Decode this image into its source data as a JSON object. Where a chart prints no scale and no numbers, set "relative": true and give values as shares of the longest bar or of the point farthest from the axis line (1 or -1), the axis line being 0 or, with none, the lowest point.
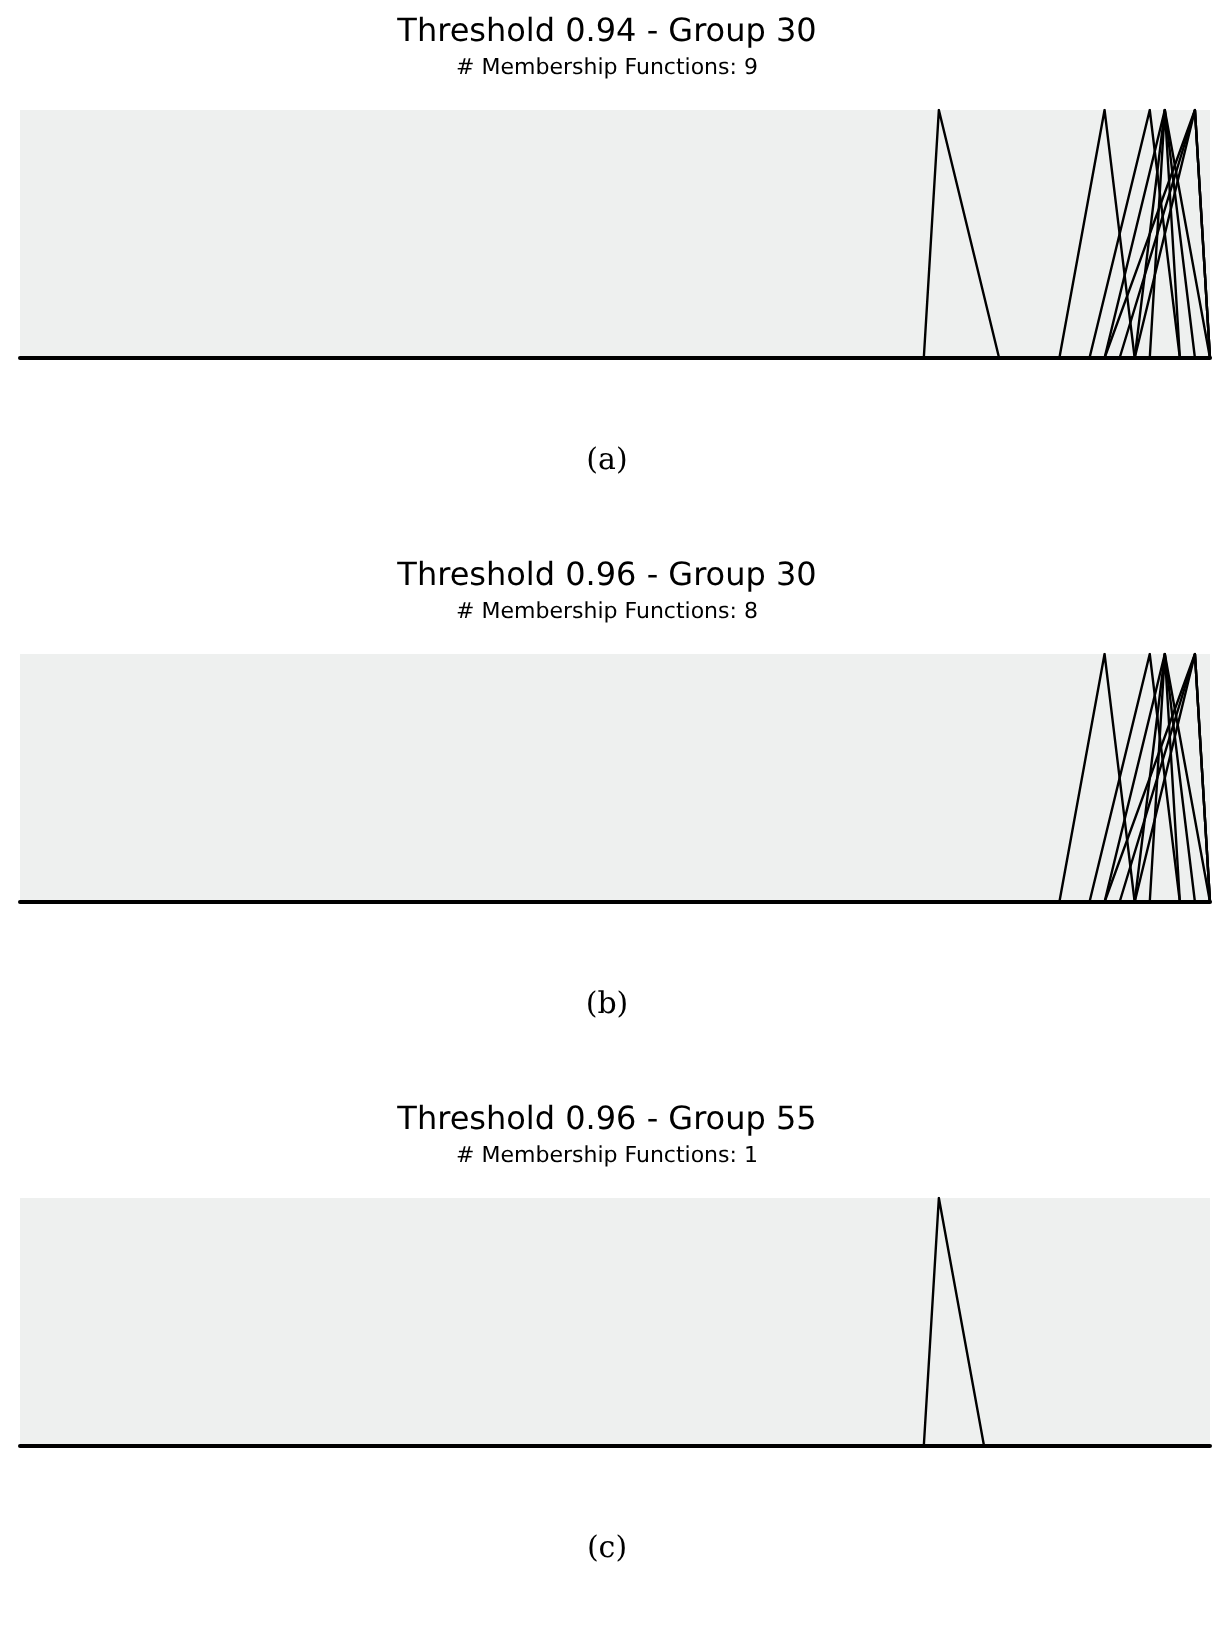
{
  "chart_data": [
    {
      "type": "line",
      "title": "Threshold 0.94 - Group 30",
      "subtitle": "# Membership Functions: 9",
      "annotations": [
        "(a)"
      ],
      "relative": true,
      "tick_labels": false,
      "grid": false,
      "line_style": "solid",
      "categories": [
        null,
        null,
        null,
        null,
        null,
        null,
        null,
        null,
        null,
        null,
        null,
        null,
        null,
        null,
        null,
        null,
        null,
        null,
        null,
        null,
        null,
        null,
        null,
        null,
        null,
        null,
        null,
        null,
        null,
        null,
        null,
        null,
        null,
        null,
        null,
        null,
        null,
        null,
        null,
        null,
        null,
        null,
        null,
        null,
        null,
        null,
        null,
        null,
        null,
        null,
        null,
        null,
        null,
        null,
        null,
        null,
        null,
        null,
        null,
        null,
        null,
        null,
        null,
        null,
        null,
        null,
        null,
        null,
        null,
        null,
        null,
        null,
        null,
        null,
        null,
        null,
        null,
        null,
        null,
        null
      ],
      "series": [
        {
          "color": "#000000",
          "values": [
            null,
            null,
            null,
            null,
            null,
            null,
            null,
            null,
            null,
            null,
            null,
            null,
            null,
            null,
            null,
            null,
            null,
            null,
            null,
            null,
            null,
            null,
            null,
            null,
            null,
            null,
            null,
            null,
            null,
            null,
            null,
            null,
            null,
            null,
            null,
            null,
            null,
            null,
            null,
            null,
            null,
            null,
            null,
            null,
            null,
            null,
            null,
            null,
            null,
            null,
            null,
            null,
            null,
            null,
            null,
            null,
            null,
            null,
            null,
            null,
            0,
            1,
            null,
            null,
            null,
            0,
            null,
            null,
            null,
            null,
            null,
            null,
            null,
            null,
            null,
            null,
            null,
            null,
            null,
            null
          ]
        },
        {
          "color": "#000000",
          "values": [
            null,
            null,
            null,
            null,
            null,
            null,
            null,
            null,
            null,
            null,
            null,
            null,
            null,
            null,
            null,
            null,
            null,
            null,
            null,
            null,
            null,
            null,
            null,
            null,
            null,
            null,
            null,
            null,
            null,
            null,
            null,
            null,
            null,
            null,
            null,
            null,
            null,
            null,
            null,
            null,
            null,
            null,
            null,
            null,
            null,
            null,
            null,
            null,
            null,
            null,
            null,
            null,
            null,
            null,
            null,
            null,
            null,
            null,
            null,
            null,
            null,
            null,
            null,
            null,
            null,
            null,
            null,
            null,
            null,
            0,
            null,
            null,
            1,
            null,
            0,
            null,
            null,
            null,
            null,
            null
          ]
        },
        {
          "color": "#000000",
          "values": [
            null,
            null,
            null,
            null,
            null,
            null,
            null,
            null,
            null,
            null,
            null,
            null,
            null,
            null,
            null,
            null,
            null,
            null,
            null,
            null,
            null,
            null,
            null,
            null,
            null,
            null,
            null,
            null,
            null,
            null,
            null,
            null,
            null,
            null,
            null,
            null,
            null,
            null,
            null,
            null,
            null,
            null,
            null,
            null,
            null,
            null,
            null,
            null,
            null,
            null,
            null,
            null,
            null,
            null,
            null,
            null,
            null,
            null,
            null,
            null,
            null,
            null,
            null,
            null,
            null,
            null,
            null,
            null,
            null,
            null,
            null,
            0,
            null,
            null,
            null,
            1,
            null,
            0,
            null,
            null
          ]
        },
        {
          "color": "#000000",
          "values": [
            null,
            null,
            null,
            null,
            null,
            null,
            null,
            null,
            null,
            null,
            null,
            null,
            null,
            null,
            null,
            null,
            null,
            null,
            null,
            null,
            null,
            null,
            null,
            null,
            null,
            null,
            null,
            null,
            null,
            null,
            null,
            null,
            null,
            null,
            null,
            null,
            null,
            null,
            null,
            null,
            null,
            null,
            null,
            null,
            null,
            null,
            null,
            null,
            null,
            null,
            null,
            null,
            null,
            null,
            null,
            null,
            null,
            null,
            null,
            null,
            null,
            null,
            null,
            null,
            null,
            null,
            null,
            null,
            null,
            null,
            null,
            null,
            0,
            null,
            null,
            null,
            1,
            null,
            0,
            null
          ]
        },
        {
          "color": "#000000",
          "values": [
            null,
            null,
            null,
            null,
            null,
            null,
            null,
            null,
            null,
            null,
            null,
            null,
            null,
            null,
            null,
            null,
            null,
            null,
            null,
            null,
            null,
            null,
            null,
            null,
            null,
            null,
            null,
            null,
            null,
            null,
            null,
            null,
            null,
            null,
            null,
            null,
            null,
            null,
            null,
            null,
            null,
            null,
            null,
            null,
            null,
            null,
            null,
            null,
            null,
            null,
            null,
            null,
            null,
            null,
            null,
            null,
            null,
            null,
            null,
            null,
            null,
            null,
            null,
            null,
            null,
            null,
            null,
            null,
            null,
            null,
            null,
            null,
            null,
            0,
            null,
            null,
            null,
            null,
            1,
            0
          ]
        },
        {
          "color": "#000000",
          "values": [
            null,
            null,
            null,
            null,
            null,
            null,
            null,
            null,
            null,
            null,
            null,
            null,
            null,
            null,
            null,
            null,
            null,
            null,
            null,
            null,
            null,
            null,
            null,
            null,
            null,
            null,
            null,
            null,
            null,
            null,
            null,
            null,
            null,
            null,
            null,
            null,
            null,
            null,
            null,
            null,
            null,
            null,
            null,
            null,
            null,
            null,
            null,
            null,
            null,
            null,
            null,
            null,
            null,
            null,
            null,
            null,
            null,
            null,
            null,
            null,
            null,
            null,
            null,
            null,
            null,
            null,
            null,
            null,
            null,
            null,
            null,
            null,
            null,
            null,
            0,
            null,
            1,
            null,
            null,
            0
          ]
        },
        {
          "color": "#000000",
          "values": [
            null,
            null,
            null,
            null,
            null,
            null,
            null,
            null,
            null,
            null,
            null,
            null,
            null,
            null,
            null,
            null,
            null,
            null,
            null,
            null,
            null,
            null,
            null,
            null,
            null,
            null,
            null,
            null,
            null,
            null,
            null,
            null,
            null,
            null,
            null,
            null,
            null,
            null,
            null,
            null,
            null,
            null,
            null,
            null,
            null,
            null,
            null,
            null,
            null,
            null,
            null,
            null,
            null,
            null,
            null,
            null,
            null,
            null,
            null,
            null,
            null,
            null,
            null,
            null,
            null,
            null,
            null,
            null,
            null,
            null,
            null,
            null,
            null,
            null,
            0,
            null,
            null,
            null,
            1,
            0
          ]
        },
        {
          "color": "#000000",
          "values": [
            null,
            null,
            null,
            null,
            null,
            null,
            null,
            null,
            null,
            null,
            null,
            null,
            null,
            null,
            null,
            null,
            null,
            null,
            null,
            null,
            null,
            null,
            null,
            null,
            null,
            null,
            null,
            null,
            null,
            null,
            null,
            null,
            null,
            null,
            null,
            null,
            null,
            null,
            null,
            null,
            null,
            null,
            null,
            null,
            null,
            null,
            null,
            null,
            null,
            null,
            null,
            null,
            null,
            null,
            null,
            null,
            null,
            null,
            null,
            null,
            null,
            null,
            null,
            null,
            null,
            null,
            null,
            null,
            null,
            null,
            null,
            null,
            0,
            null,
            null,
            null,
            null,
            null,
            1,
            0
          ]
        },
        {
          "color": "#000000",
          "values": [
            null,
            null,
            null,
            null,
            null,
            null,
            null,
            null,
            null,
            null,
            null,
            null,
            null,
            null,
            null,
            null,
            null,
            null,
            null,
            null,
            null,
            null,
            null,
            null,
            null,
            null,
            null,
            null,
            null,
            null,
            null,
            null,
            null,
            null,
            null,
            null,
            null,
            null,
            null,
            null,
            null,
            null,
            null,
            null,
            null,
            null,
            null,
            null,
            null,
            null,
            null,
            null,
            null,
            null,
            null,
            null,
            null,
            null,
            null,
            null,
            null,
            null,
            null,
            null,
            null,
            null,
            null,
            null,
            null,
            null,
            null,
            null,
            null,
            null,
            null,
            0,
            1,
            0,
            null,
            null
          ]
        }
      ]
    },
    {
      "type": "line",
      "title": "Threshold 0.96 - Group 30",
      "subtitle": "# Membership Functions: 8",
      "annotations": [
        "(b)"
      ],
      "relative": true,
      "tick_labels": false,
      "grid": false,
      "line_style": "solid",
      "categories": [
        null,
        null,
        null,
        null,
        null,
        null,
        null,
        null,
        null,
        null,
        null,
        null,
        null,
        null,
        null,
        null,
        null,
        null,
        null,
        null,
        null,
        null,
        null,
        null,
        null,
        null,
        null,
        null,
        null,
        null,
        null,
        null,
        null,
        null,
        null,
        null,
        null,
        null,
        null,
        null,
        null,
        null,
        null,
        null,
        null,
        null,
        null,
        null,
        null,
        null,
        null,
        null,
        null,
        null,
        null,
        null,
        null,
        null,
        null,
        null,
        null,
        null,
        null,
        null,
        null,
        null,
        null,
        null,
        null,
        null,
        null,
        null,
        null,
        null,
        null,
        null,
        null,
        null,
        null,
        null
      ],
      "series": [
        {
          "color": "#000000",
          "values": [
            null,
            null,
            null,
            null,
            null,
            null,
            null,
            null,
            null,
            null,
            null,
            null,
            null,
            null,
            null,
            null,
            null,
            null,
            null,
            null,
            null,
            null,
            null,
            null,
            null,
            null,
            null,
            null,
            null,
            null,
            null,
            null,
            null,
            null,
            null,
            null,
            null,
            null,
            null,
            null,
            null,
            null,
            null,
            null,
            null,
            null,
            null,
            null,
            null,
            null,
            null,
            null,
            null,
            null,
            null,
            null,
            null,
            null,
            null,
            null,
            null,
            null,
            null,
            null,
            null,
            null,
            null,
            null,
            null,
            0,
            null,
            null,
            1,
            null,
            0,
            null,
            null,
            null,
            null,
            null
          ]
        },
        {
          "color": "#000000",
          "values": [
            null,
            null,
            null,
            null,
            null,
            null,
            null,
            null,
            null,
            null,
            null,
            null,
            null,
            null,
            null,
            null,
            null,
            null,
            null,
            null,
            null,
            null,
            null,
            null,
            null,
            null,
            null,
            null,
            null,
            null,
            null,
            null,
            null,
            null,
            null,
            null,
            null,
            null,
            null,
            null,
            null,
            null,
            null,
            null,
            null,
            null,
            null,
            null,
            null,
            null,
            null,
            null,
            null,
            null,
            null,
            null,
            null,
            null,
            null,
            null,
            null,
            null,
            null,
            null,
            null,
            null,
            null,
            null,
            null,
            null,
            null,
            0,
            null,
            null,
            null,
            1,
            null,
            0,
            null,
            null
          ]
        },
        {
          "color": "#000000",
          "values": [
            null,
            null,
            null,
            null,
            null,
            null,
            null,
            null,
            null,
            null,
            null,
            null,
            null,
            null,
            null,
            null,
            null,
            null,
            null,
            null,
            null,
            null,
            null,
            null,
            null,
            null,
            null,
            null,
            null,
            null,
            null,
            null,
            null,
            null,
            null,
            null,
            null,
            null,
            null,
            null,
            null,
            null,
            null,
            null,
            null,
            null,
            null,
            null,
            null,
            null,
            null,
            null,
            null,
            null,
            null,
            null,
            null,
            null,
            null,
            null,
            null,
            null,
            null,
            null,
            null,
            null,
            null,
            null,
            null,
            null,
            null,
            null,
            0,
            null,
            null,
            null,
            1,
            null,
            0,
            null
          ]
        },
        {
          "color": "#000000",
          "values": [
            null,
            null,
            null,
            null,
            null,
            null,
            null,
            null,
            null,
            null,
            null,
            null,
            null,
            null,
            null,
            null,
            null,
            null,
            null,
            null,
            null,
            null,
            null,
            null,
            null,
            null,
            null,
            null,
            null,
            null,
            null,
            null,
            null,
            null,
            null,
            null,
            null,
            null,
            null,
            null,
            null,
            null,
            null,
            null,
            null,
            null,
            null,
            null,
            null,
            null,
            null,
            null,
            null,
            null,
            null,
            null,
            null,
            null,
            null,
            null,
            null,
            null,
            null,
            null,
            null,
            null,
            null,
            null,
            null,
            null,
            null,
            null,
            null,
            0,
            null,
            null,
            null,
            null,
            1,
            0
          ]
        },
        {
          "color": "#000000",
          "values": [
            null,
            null,
            null,
            null,
            null,
            null,
            null,
            null,
            null,
            null,
            null,
            null,
            null,
            null,
            null,
            null,
            null,
            null,
            null,
            null,
            null,
            null,
            null,
            null,
            null,
            null,
            null,
            null,
            null,
            null,
            null,
            null,
            null,
            null,
            null,
            null,
            null,
            null,
            null,
            null,
            null,
            null,
            null,
            null,
            null,
            null,
            null,
            null,
            null,
            null,
            null,
            null,
            null,
            null,
            null,
            null,
            null,
            null,
            null,
            null,
            null,
            null,
            null,
            null,
            null,
            null,
            null,
            null,
            null,
            null,
            null,
            null,
            null,
            null,
            0,
            null,
            1,
            null,
            null,
            0
          ]
        },
        {
          "color": "#000000",
          "values": [
            null,
            null,
            null,
            null,
            null,
            null,
            null,
            null,
            null,
            null,
            null,
            null,
            null,
            null,
            null,
            null,
            null,
            null,
            null,
            null,
            null,
            null,
            null,
            null,
            null,
            null,
            null,
            null,
            null,
            null,
            null,
            null,
            null,
            null,
            null,
            null,
            null,
            null,
            null,
            null,
            null,
            null,
            null,
            null,
            null,
            null,
            null,
            null,
            null,
            null,
            null,
            null,
            null,
            null,
            null,
            null,
            null,
            null,
            null,
            null,
            null,
            null,
            null,
            null,
            null,
            null,
            null,
            null,
            null,
            null,
            null,
            null,
            null,
            null,
            0,
            null,
            null,
            null,
            1,
            0
          ]
        },
        {
          "color": "#000000",
          "values": [
            null,
            null,
            null,
            null,
            null,
            null,
            null,
            null,
            null,
            null,
            null,
            null,
            null,
            null,
            null,
            null,
            null,
            null,
            null,
            null,
            null,
            null,
            null,
            null,
            null,
            null,
            null,
            null,
            null,
            null,
            null,
            null,
            null,
            null,
            null,
            null,
            null,
            null,
            null,
            null,
            null,
            null,
            null,
            null,
            null,
            null,
            null,
            null,
            null,
            null,
            null,
            null,
            null,
            null,
            null,
            null,
            null,
            null,
            null,
            null,
            null,
            null,
            null,
            null,
            null,
            null,
            null,
            null,
            null,
            null,
            null,
            null,
            0,
            null,
            null,
            null,
            null,
            null,
            1,
            0
          ]
        },
        {
          "color": "#000000",
          "values": [
            null,
            null,
            null,
            null,
            null,
            null,
            null,
            null,
            null,
            null,
            null,
            null,
            null,
            null,
            null,
            null,
            null,
            null,
            null,
            null,
            null,
            null,
            null,
            null,
            null,
            null,
            null,
            null,
            null,
            null,
            null,
            null,
            null,
            null,
            null,
            null,
            null,
            null,
            null,
            null,
            null,
            null,
            null,
            null,
            null,
            null,
            null,
            null,
            null,
            null,
            null,
            null,
            null,
            null,
            null,
            null,
            null,
            null,
            null,
            null,
            null,
            null,
            null,
            null,
            null,
            null,
            null,
            null,
            null,
            null,
            null,
            null,
            null,
            null,
            null,
            0,
            1,
            0,
            null,
            null
          ]
        }
      ]
    },
    {
      "type": "line",
      "title": "Threshold 0.96 - Group 55",
      "subtitle": "# Membership Functions: 1",
      "annotations": [
        "(c)"
      ],
      "relative": true,
      "tick_labels": false,
      "grid": false,
      "line_style": "solid",
      "categories": [
        null,
        null,
        null,
        null,
        null,
        null,
        null,
        null,
        null,
        null,
        null,
        null,
        null,
        null,
        null,
        null,
        null,
        null,
        null,
        null,
        null,
        null,
        null,
        null,
        null,
        null,
        null,
        null,
        null,
        null,
        null,
        null,
        null,
        null,
        null,
        null,
        null,
        null,
        null,
        null,
        null,
        null,
        null,
        null,
        null,
        null,
        null,
        null,
        null,
        null,
        null,
        null,
        null,
        null,
        null,
        null,
        null,
        null,
        null,
        null,
        null,
        null,
        null,
        null,
        null,
        null,
        null,
        null,
        null,
        null,
        null,
        null,
        null,
        null,
        null,
        null,
        null,
        null,
        null,
        null
      ],
      "series": [
        {
          "color": "#000000",
          "values": [
            null,
            null,
            null,
            null,
            null,
            null,
            null,
            null,
            null,
            null,
            null,
            null,
            null,
            null,
            null,
            null,
            null,
            null,
            null,
            null,
            null,
            null,
            null,
            null,
            null,
            null,
            null,
            null,
            null,
            null,
            null,
            null,
            null,
            null,
            null,
            null,
            null,
            null,
            null,
            null,
            null,
            null,
            null,
            null,
            null,
            null,
            null,
            null,
            null,
            null,
            null,
            null,
            null,
            null,
            null,
            null,
            null,
            null,
            null,
            null,
            0,
            1,
            null,
            null,
            0,
            null,
            null,
            null,
            null,
            null,
            null,
            null,
            null,
            null,
            null,
            null,
            null,
            null,
            null,
            null
          ]
        }
      ]
    }
  ]
}
